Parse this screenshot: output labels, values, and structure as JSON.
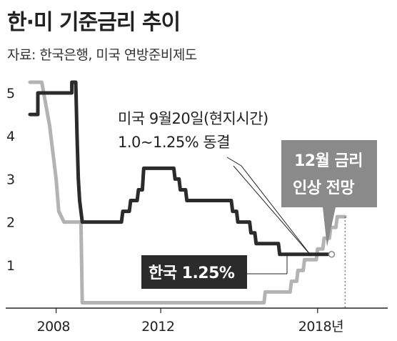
{
  "header": {
    "title": "한·미 기준금리 추이",
    "source": "자료: 한국은행, 미국 연방준비제도"
  },
  "chart_data": {
    "type": "line",
    "title": "한·미 기준금리 추이",
    "xlabel": "",
    "ylabel": "",
    "xlim": [
      2006.4,
      2020.6
    ],
    "ylim": [
      0,
      5.2
    ],
    "grid": false,
    "y_ticks": [
      "5",
      "4",
      "3",
      "2",
      "1"
    ],
    "x_ticks": [
      "2008",
      "2012",
      "2018년"
    ],
    "series": [
      {
        "name": "한국",
        "color": "#2b2b2b",
        "x": [
          2007.0,
          2007.3,
          2007.3,
          2008.6,
          2008.6,
          2008.75,
          2008.8,
          2008.85,
          2008.9,
          2009.0,
          2009.1,
          2010.5,
          2010.55,
          2010.8,
          2010.85,
          2011.1,
          2011.15,
          2011.3,
          2011.35,
          2012.5,
          2012.55,
          2012.7,
          2012.75,
          2012.95,
          2013.0,
          2013.5,
          2013.55,
          2014.7,
          2014.75,
          2014.9,
          2014.95,
          2015.4,
          2015.45,
          2015.6,
          2015.65,
          2016.5,
          2016.55,
          2017.9,
          2017.95,
          2018.4
        ],
        "y": [
          4.5,
          4.5,
          5.0,
          5.0,
          5.25,
          5.25,
          4.0,
          3.0,
          2.5,
          2.0,
          2.0,
          2.0,
          2.25,
          2.25,
          2.5,
          2.5,
          2.75,
          2.75,
          3.25,
          3.25,
          3.0,
          3.0,
          2.75,
          2.75,
          2.5,
          2.5,
          2.5,
          2.5,
          2.25,
          2.25,
          2.0,
          2.0,
          1.75,
          1.75,
          1.5,
          1.5,
          1.25,
          1.25,
          1.25,
          1.25
        ]
      },
      {
        "name": "미국",
        "color": "#b3b3b3",
        "x": [
          2007.0,
          2007.45,
          2007.6,
          2007.75,
          2008.0,
          2008.1,
          2008.3,
          2008.95,
          2009.0,
          2015.95,
          2016.0,
          2016.95,
          2017.0,
          2017.2,
          2017.25,
          2017.45,
          2017.5,
          2017.95,
          2018.0,
          2018.2,
          2018.25,
          2018.45,
          2018.5,
          2018.7,
          2018.75,
          2019.05
        ],
        "y": [
          5.25,
          5.25,
          4.75,
          4.25,
          3.0,
          2.25,
          2.0,
          2.0,
          0.125,
          0.125,
          0.375,
          0.375,
          0.625,
          0.625,
          0.875,
          0.875,
          1.125,
          1.125,
          1.375,
          1.375,
          1.625,
          1.625,
          1.875,
          1.875,
          2.125,
          2.125
        ]
      }
    ],
    "annotations": {
      "korea_label": "한국 1.25%",
      "us_note_line1": "미국 9월20일(현지시간)",
      "us_note_line2": "1.0~1.25% 동결",
      "forecast_line1": "12월 금리",
      "forecast_line2": "인상 전망"
    }
  }
}
